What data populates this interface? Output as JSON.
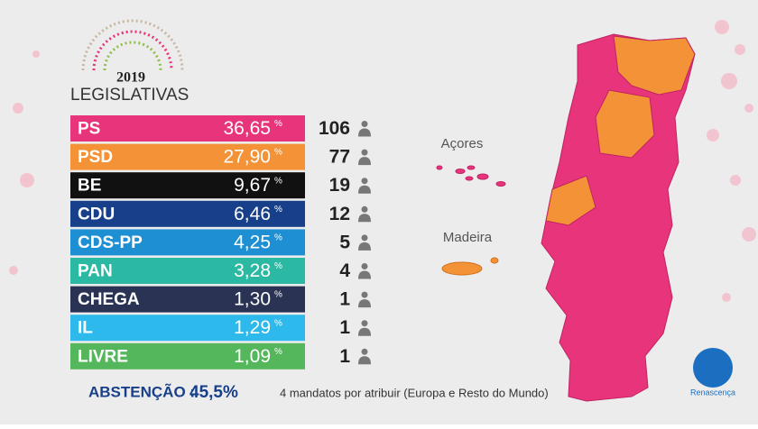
{
  "header": {
    "year": "2019",
    "title": "LEGISLATIVAS"
  },
  "percent_sign": "%",
  "table": {
    "rows": [
      {
        "party": "PS",
        "percent": "36,65",
        "seats": "106",
        "color": "#e8347a"
      },
      {
        "party": "PSD",
        "percent": "27,90",
        "seats": "77",
        "color": "#f39237"
      },
      {
        "party": "BE",
        "percent": "9,67",
        "seats": "19",
        "color": "#111111"
      },
      {
        "party": "CDU",
        "percent": "6,46",
        "seats": "12",
        "color": "#173f8a"
      },
      {
        "party": "CDS-PP",
        "percent": "4,25",
        "seats": "5",
        "color": "#1f8fd3"
      },
      {
        "party": "PAN",
        "percent": "3,28",
        "seats": "4",
        "color": "#2bb9a3"
      },
      {
        "party": "CHEGA",
        "percent": "1,30",
        "seats": "1",
        "color": "#2a3354"
      },
      {
        "party": "IL",
        "percent": "1,29",
        "seats": "1",
        "color": "#2db9eb"
      },
      {
        "party": "LIVRE",
        "percent": "1,09",
        "seats": "1",
        "color": "#55b75b"
      }
    ]
  },
  "footer": {
    "abstention_label": "ABSTENÇÃO :",
    "abstention_value": "45,5%",
    "note": "4 mandatos por atribuir (Europa e Resto do Mundo)"
  },
  "map": {
    "azores": "Açores",
    "madeira": "Madeira"
  },
  "logo": "Renascença"
}
